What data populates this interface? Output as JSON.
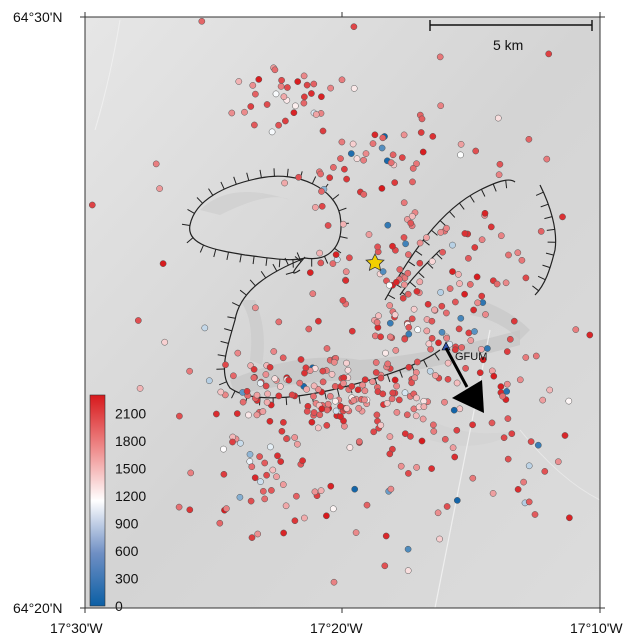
{
  "map": {
    "latitude_labels": [
      "64°30'N",
      "64°20'N"
    ],
    "longitude_labels": [
      "17°30'W",
      "17°20'W",
      "17°10'W"
    ],
    "scale_bar": {
      "label": "5 km"
    },
    "station": {
      "label": "GFUM"
    },
    "colorbar": {
      "tick_labels": [
        "2100",
        "1800",
        "1500",
        "1200",
        "900",
        "600",
        "300",
        "0"
      ],
      "range": [
        0,
        2300
      ],
      "colors": {
        "low": "#0b5fa5",
        "mid": "#ffffff",
        "high": "#d7191c"
      }
    },
    "colors": {
      "caldera_rim": "#222222",
      "star_fill": "#f2d000",
      "terrain_base": "#d6d6d6",
      "arrow": "#000000"
    }
  },
  "chart_data": {
    "type": "scatter",
    "x_label_ticks": [
      "17°30'W",
      "17°20'W",
      "17°10'W"
    ],
    "y_label_ticks": [
      "64°20'N",
      "64°30'N"
    ],
    "xlim": [
      -17.5,
      -17.1667
    ],
    "ylim": [
      64.3333,
      64.5
    ],
    "color_scale": {
      "min": 0,
      "max": 2300,
      "ticks": [
        0,
        300,
        600,
        900,
        1200,
        1500,
        1800,
        2100
      ]
    },
    "markers": {
      "epicentre_star": {
        "lon": -17.308,
        "lat": 64.442
      },
      "station_GFUM": {
        "lon": -17.265,
        "lat": 64.415
      }
    },
    "point_count": 600
  }
}
